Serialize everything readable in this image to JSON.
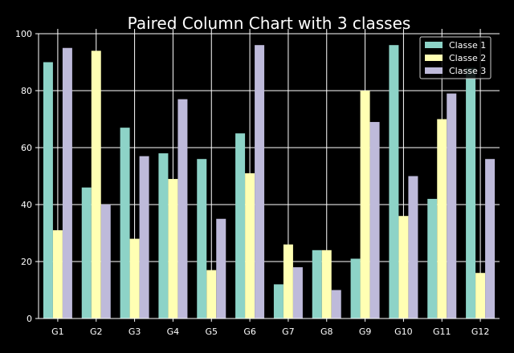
{
  "chart_data": {
    "type": "bar",
    "title": "Paired Column Chart with 3 classes",
    "xlabel": "",
    "ylabel": "",
    "categories": [
      "G1",
      "G2",
      "G3",
      "G4",
      "G5",
      "G6",
      "G7",
      "G8",
      "G9",
      "G10",
      "G11",
      "G12"
    ],
    "series": [
      {
        "name": "Classe 1",
        "color": "#8dd3c7",
        "values": [
          90,
          46,
          67,
          58,
          56,
          65,
          12,
          24,
          21,
          96,
          42,
          88
        ]
      },
      {
        "name": "Classe 2",
        "color": "#ffffb3",
        "values": [
          31,
          94,
          28,
          49,
          17,
          51,
          26,
          24,
          80,
          36,
          70,
          16
        ]
      },
      {
        "name": "Classe 3",
        "color": "#bebada",
        "values": [
          95,
          40,
          57,
          77,
          35,
          96,
          18,
          10,
          69,
          50,
          79,
          56
        ]
      }
    ],
    "ylim": [
      0,
      100
    ],
    "yticks": [
      "0",
      "20",
      "40",
      "60",
      "80",
      "100"
    ],
    "grid": true,
    "legend_position": "top-right",
    "background": "#000000",
    "foreground": "#ffffff"
  }
}
